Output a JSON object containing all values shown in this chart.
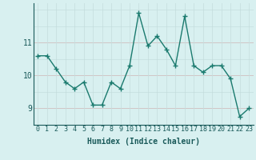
{
  "x": [
    0,
    1,
    2,
    3,
    4,
    5,
    6,
    7,
    8,
    9,
    10,
    11,
    12,
    13,
    14,
    15,
    16,
    17,
    18,
    19,
    20,
    21,
    22,
    23
  ],
  "y": [
    10.6,
    10.6,
    10.2,
    9.8,
    9.6,
    9.8,
    9.1,
    9.1,
    9.8,
    9.6,
    10.3,
    11.9,
    10.9,
    11.2,
    10.8,
    10.3,
    11.8,
    10.3,
    10.1,
    10.3,
    10.3,
    9.9,
    8.75,
    9.0
  ],
  "title": "",
  "xlabel": "Humidex (Indice chaleur)",
  "ylabel": "",
  "xlim": [
    -0.5,
    23.5
  ],
  "ylim": [
    8.5,
    12.2
  ],
  "yticks": [
    9,
    10,
    11
  ],
  "xticks": [
    0,
    1,
    2,
    3,
    4,
    5,
    6,
    7,
    8,
    9,
    10,
    11,
    12,
    13,
    14,
    15,
    16,
    17,
    18,
    19,
    20,
    21,
    22,
    23
  ],
  "line_color": "#1a7a6e",
  "bg_color": "#d8f0f0",
  "grid_h_color": "#c8e0e0",
  "grid_v_color": "#e8a0a0",
  "marker": "+",
  "linewidth": 1.0,
  "markersize": 4,
  "tick_fontsize": 6,
  "xlabel_fontsize": 7
}
